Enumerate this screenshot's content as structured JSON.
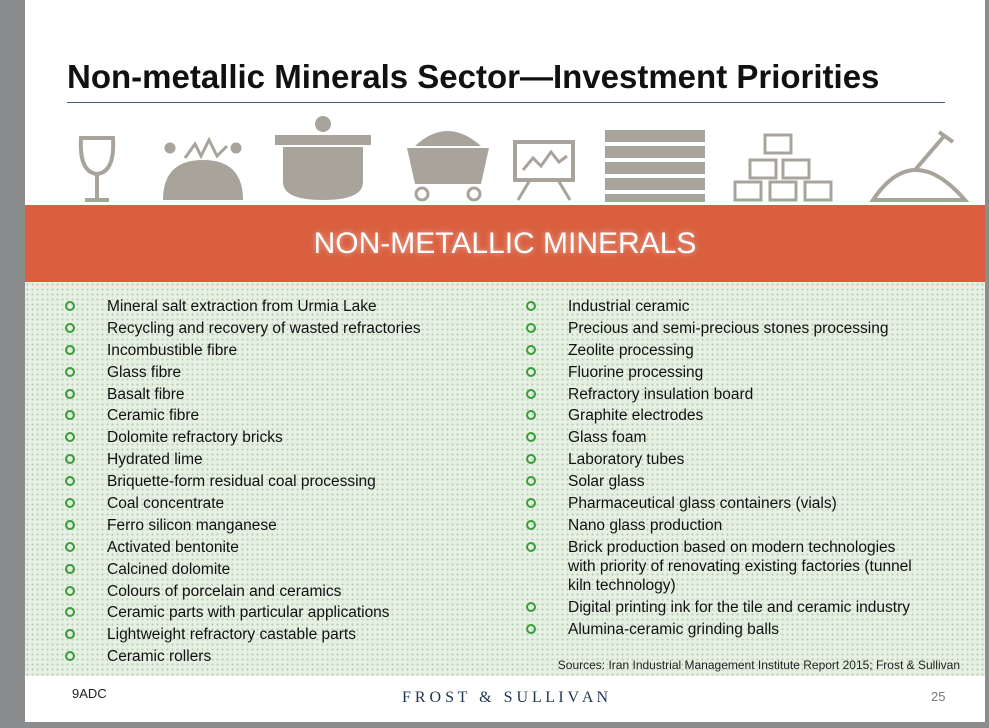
{
  "header": {
    "title": "Non-metallic Minerals Sector—Investment Priorities"
  },
  "banner": {
    "label": "NON-METALLIC MINERALS"
  },
  "lists": {
    "left": [
      "Mineral salt extraction from Urmia Lake",
      "Recycling and recovery of wasted refractories",
      "Incombustible fibre",
      "Glass fibre",
      "Basalt fibre",
      "Ceramic fibre",
      "Dolomite refractory bricks",
      "Hydrated lime",
      "Briquette-form residual coal processing",
      "Coal concentrate",
      "Ferro silicon manganese",
      "Activated bentonite",
      "Calcined dolomite",
      "Colours of porcelain and ceramics",
      "Ceramic parts with particular applications",
      "Lightweight refractory castable parts",
      "Ceramic rollers"
    ],
    "right": [
      "Industrial ceramic",
      "Precious and semi-precious stones processing",
      "Zeolite processing",
      "Fluorine processing",
      "Refractory insulation board",
      "Graphite electrodes",
      "Glass foam",
      "Laboratory tubes",
      "Solar glass",
      "Pharmaceutical glass containers (vials)",
      "Nano glass production",
      "Brick production based on modern technologies with priority of renovating existing factories (tunnel kiln technology)",
      "Digital printing ink for the tile and ceramic industry",
      "Alumina-ceramic grinding balls"
    ]
  },
  "source": "Sources: Iran Industrial Management Institute Report 2015; Frost & Sullivan",
  "footer": {
    "code": "9ADC",
    "brand": "F R O S T   &   S U L L I V A N",
    "page": "25"
  }
}
